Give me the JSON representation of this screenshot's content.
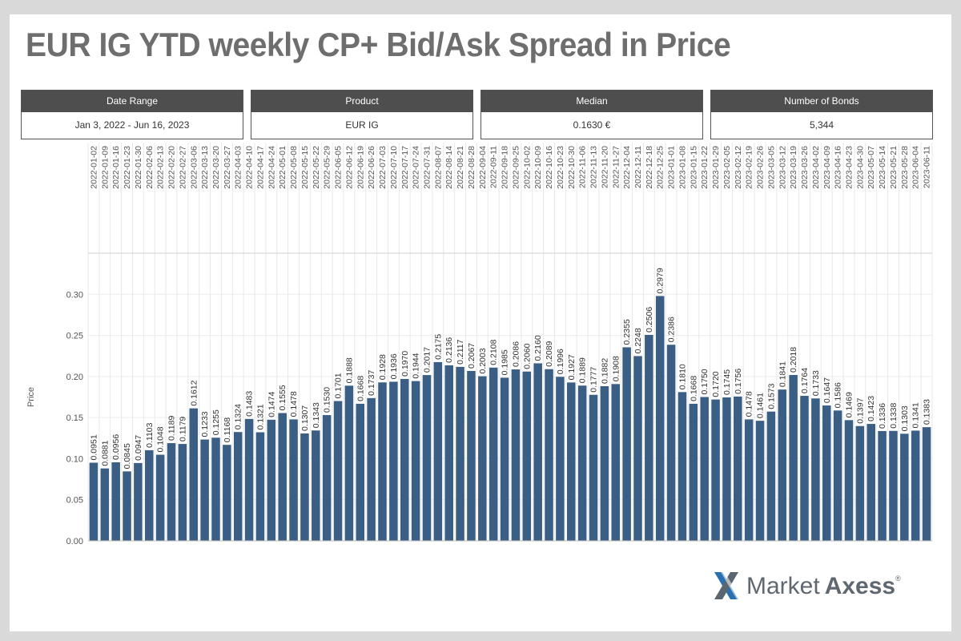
{
  "title": "EUR IG YTD weekly CP+ Bid/Ask Spread in Price",
  "kpis": [
    {
      "label": "Date Range",
      "value": "Jan 3, 2022 - Jun 16, 2023"
    },
    {
      "label": "Product",
      "value": "EUR IG"
    },
    {
      "label": "Median",
      "value": "0.1630 €"
    },
    {
      "label": "Number of Bonds",
      "value": "5,344"
    }
  ],
  "logo": {
    "text_regular": "Market",
    "text_bold": "Axess",
    "mark": "®"
  },
  "colors": {
    "bar": "#3b5f84",
    "title": "#6e6e6e",
    "header": "#4e4e4e"
  },
  "chart_data": {
    "type": "bar",
    "ylabel": "Price",
    "ylim": [
      0,
      0.35
    ],
    "yticks": [
      "0.00",
      "0.05",
      "0.10",
      "0.15",
      "0.20",
      "0.25",
      "0.30"
    ],
    "grid": true,
    "categories": [
      "2022-01-02",
      "2022-01-09",
      "2022-01-16",
      "2022-01-23",
      "2022-01-30",
      "2022-02-06",
      "2022-02-13",
      "2022-02-20",
      "2022-02-27",
      "2022-03-06",
      "2022-03-13",
      "2022-03-20",
      "2022-03-27",
      "2022-04-03",
      "2022-04-10",
      "2022-04-17",
      "2022-04-24",
      "2022-05-01",
      "2022-05-08",
      "2022-05-15",
      "2022-05-22",
      "2022-05-29",
      "2022-06-05",
      "2022-06-12",
      "2022-06-19",
      "2022-06-26",
      "2022-07-03",
      "2022-07-10",
      "2022-07-17",
      "2022-07-24",
      "2022-07-31",
      "2022-08-07",
      "2022-08-14",
      "2022-08-21",
      "2022-08-28",
      "2022-09-04",
      "2022-09-11",
      "2022-09-18",
      "2022-09-25",
      "2022-10-02",
      "2022-10-09",
      "2022-10-16",
      "2022-10-23",
      "2022-10-30",
      "2022-11-06",
      "2022-11-13",
      "2022-11-20",
      "2022-11-27",
      "2022-12-04",
      "2022-12-11",
      "2022-12-18",
      "2022-12-25",
      "2023-01-01",
      "2023-01-08",
      "2023-01-15",
      "2023-01-22",
      "2023-01-29",
      "2023-02-05",
      "2023-02-12",
      "2023-02-19",
      "2023-02-26",
      "2023-03-05",
      "2023-03-12",
      "2023-03-19",
      "2023-03-26",
      "2023-04-02",
      "2023-04-09",
      "2023-04-16",
      "2023-04-23",
      "2023-04-30",
      "2023-05-07",
      "2023-05-14",
      "2023-05-21",
      "2023-05-28",
      "2023-06-04",
      "2023-06-11"
    ],
    "values": [
      0.0951,
      0.0881,
      0.0956,
      0.0845,
      0.0947,
      0.1103,
      0.1048,
      0.1189,
      0.1179,
      0.1612,
      0.1233,
      0.1255,
      0.1168,
      0.1324,
      0.1483,
      0.1321,
      0.1474,
      0.1555,
      0.1478,
      0.1307,
      0.1343,
      0.153,
      0.1701,
      0.1888,
      0.1668,
      0.1737,
      0.1928,
      0.1936,
      0.197,
      0.1944,
      0.2017,
      0.2175,
      0.2136,
      0.2117,
      0.2067,
      0.2003,
      0.2108,
      0.1985,
      0.2086,
      0.206,
      0.216,
      0.2089,
      0.1996,
      0.1927,
      0.1889,
      0.1777,
      0.1882,
      0.1908,
      0.2355,
      0.2248,
      0.2506,
      0.2979,
      0.2386,
      0.181,
      0.1668,
      0.175,
      0.172,
      0.1745,
      0.1756,
      0.1478,
      0.1461,
      0.1573,
      0.1841,
      0.2018,
      0.1764,
      0.1733,
      0.1647,
      0.1586,
      0.1469,
      0.1397,
      0.1423,
      0.1336,
      0.1338,
      0.1303,
      0.1341,
      0.1383
    ],
    "labels": [
      "0.0951",
      "0.0881",
      "0.0956",
      "0.0845",
      "0.0947",
      "0.1103",
      "0.1048",
      "0.1189",
      "0.1179",
      "0.1612",
      "0.1233",
      "0.1255",
      "0.1168",
      "0.1324",
      "0.1483",
      "0.1321",
      "0.1474",
      "0.1555",
      "0.1478",
      "0.1307",
      "0.1343",
      "0.1530",
      "0.1701",
      "0.1888",
      "0.1668",
      "0.1737",
      "0.1928",
      "0.1936",
      "0.1970",
      "0.1944",
      "0.2017",
      "0.2175",
      "0.2136",
      "0.2117",
      "0.2067",
      "0.2003",
      "0.2108",
      "0.1985",
      "0.2086",
      "0.2060",
      "0.2160",
      "0.2089",
      "0.1996",
      "0.1927",
      "0.1889",
      "0.1777",
      "0.1882",
      "0.1908",
      "0.2355",
      "0.2248",
      "0.2506",
      "0.2979",
      "0.2386",
      "0.1810",
      "0.1668",
      "0.1750",
      "0.1720",
      "0.1745",
      "0.1756",
      "0.1478",
      "0.1461",
      "0.1573",
      "0.1841",
      "0.2018",
      "0.1764",
      "0.1733",
      "0.1647",
      "0.1586",
      "0.1469",
      "0.1397",
      "0.1423",
      "0.1336",
      "0.1338",
      "0.1303",
      "0.1341",
      "0.1383"
    ]
  }
}
